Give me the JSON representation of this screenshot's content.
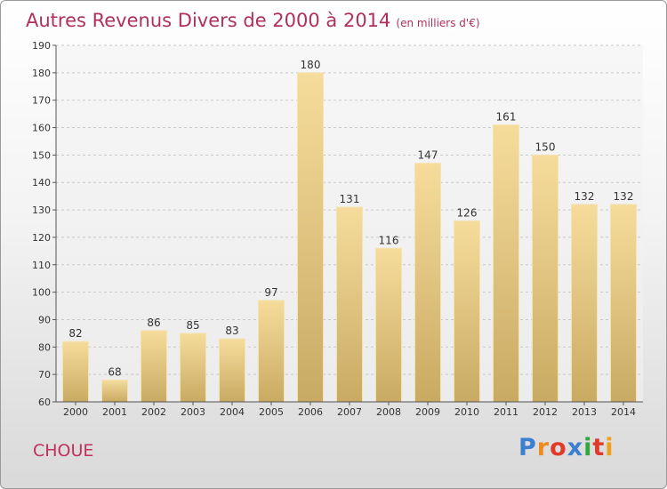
{
  "header": {
    "title": "Autres Revenus Divers de 2000 à 2014",
    "unit": "(en milliers d'€)"
  },
  "footer": {
    "commune": "CHOUE",
    "logo": "Proxiti",
    "logo_colors": [
      "#3a7fd0",
      "#f08a1c",
      "#e03a2a",
      "#3a7fd0",
      "#2faa3a",
      "#e03a2a",
      "#f0a01c"
    ]
  },
  "chart_data": {
    "type": "bar",
    "categories": [
      "2000",
      "2001",
      "2002",
      "2003",
      "2004",
      "2005",
      "2006",
      "2007",
      "2008",
      "2009",
      "2010",
      "2011",
      "2012",
      "2013",
      "2014"
    ],
    "values": [
      82,
      68,
      86,
      85,
      83,
      97,
      180,
      131,
      116,
      147,
      126,
      161,
      150,
      132,
      132
    ],
    "ylim": [
      60,
      190
    ],
    "yticks": [
      60,
      70,
      80,
      90,
      100,
      110,
      120,
      130,
      140,
      150,
      160,
      170,
      180,
      190
    ],
    "grid": true,
    "bar_color": "#e8c97e"
  }
}
